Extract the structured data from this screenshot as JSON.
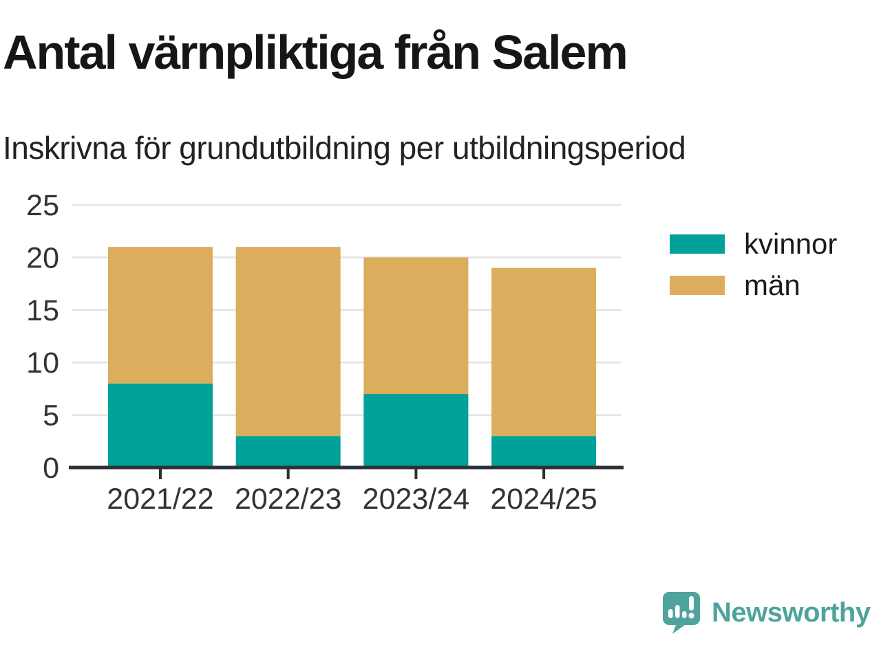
{
  "header": {
    "title": "Antal värnpliktiga från Salem",
    "subtitle": "Inskrivna för grundutbildning per utbildningsperiod"
  },
  "chart_data": {
    "type": "bar",
    "stacked": true,
    "title": "Antal värnpliktiga från Salem",
    "subtitle": "Inskrivna för grundutbildning per utbildningsperiod",
    "categories": [
      "2021/22",
      "2022/23",
      "2023/24",
      "2024/25"
    ],
    "series": [
      {
        "name": "kvinnor",
        "color": "#00A199",
        "values": [
          8,
          3,
          7,
          3
        ]
      },
      {
        "name": "män",
        "color": "#DBAD5C",
        "values": [
          13,
          18,
          13,
          16
        ]
      }
    ],
    "xlabel": "",
    "ylabel": "",
    "ylim": [
      0,
      25
    ],
    "yticks": [
      0,
      5,
      10,
      15,
      20,
      25
    ],
    "grid": true,
    "legend_position": "right"
  },
  "branding": {
    "logo_text": "Newsworthy",
    "logo_color": "#4EA49D",
    "logo_icon": "bar-chart-speech-bubble-icon"
  },
  "colors": {
    "background": "#FFFFFF",
    "axis": "#2E3134",
    "gridline": "#E2E2E2",
    "axis_label": "#333333",
    "title_text": "#161616"
  }
}
